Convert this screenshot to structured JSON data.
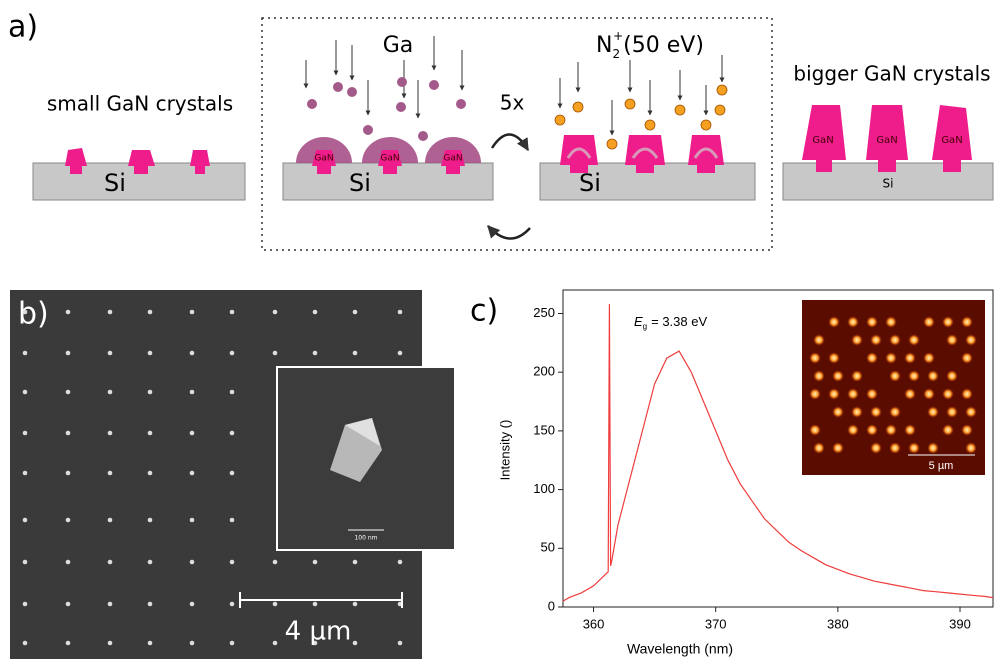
{
  "panel_a": {
    "label": "a)",
    "left_caption": "small GaN crystals",
    "right_caption": "bigger GaN crystals",
    "substrate_labels": [
      "Si",
      "Si",
      "Si",
      "Si"
    ],
    "ga_label": "Ga",
    "ion_label": {
      "symbol": "N",
      "subscript": "2",
      "superscript": "+",
      "energy": "(50 eV)"
    },
    "repeat_label": "5x",
    "crystal_labels_middle": [
      "GaN",
      "GaN",
      "GaN"
    ],
    "crystal_labels_right": [
      "GaN",
      "GaN",
      "GaN"
    ]
  },
  "panel_b": {
    "label": "b)",
    "scale_bar": "4 µm",
    "inset_scale_bar": "100 nm"
  },
  "chart_data": {
    "type": "line",
    "panel_label": "c)",
    "x_label": "Wavelength (nm)",
    "y_label": "Intensity ()",
    "annotation": {
      "symbol": "E",
      "subscript": "g",
      "text": "= 3.38 eV"
    },
    "inset_scale_bar": "5 µm",
    "color": "#f03c3c",
    "x": [
      357.5,
      358,
      359,
      360,
      361,
      361.2,
      361.3,
      361.4,
      361.5,
      362,
      363,
      364,
      365,
      366,
      367,
      368,
      369,
      370,
      371,
      372,
      373,
      374,
      375,
      376,
      377,
      378,
      379,
      380,
      381,
      382,
      383,
      384,
      385,
      386,
      387,
      388,
      389,
      390,
      391,
      392,
      392.7
    ],
    "values": [
      5,
      8,
      12,
      18,
      28,
      30,
      258,
      35,
      40,
      70,
      110,
      150,
      190,
      212,
      218,
      200,
      175,
      150,
      125,
      105,
      90,
      75,
      65,
      55,
      48,
      42,
      36,
      32,
      28,
      25,
      22,
      20,
      18,
      16,
      14,
      13,
      12,
      11,
      10,
      9,
      8
    ],
    "xlim": [
      357.5,
      392.7
    ],
    "ylim": [
      0,
      270
    ],
    "xticks": [
      360,
      370,
      380,
      390
    ],
    "yticks": [
      0,
      50,
      100,
      150,
      200,
      250
    ]
  }
}
